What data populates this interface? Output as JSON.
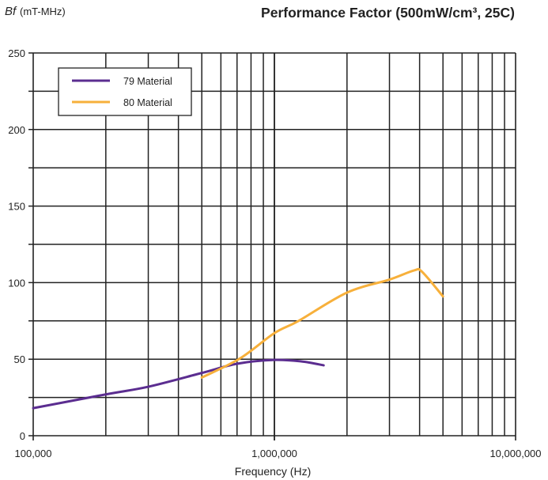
{
  "chart_data": {
    "type": "line",
    "title": "Performance Factor (500mW/cm³, 25C)",
    "ylabel_prefix": "Bf",
    "ylabel": "(mT-MHz)",
    "xlabel": "Frequency (Hz)",
    "x_scale": "log",
    "xlim": [
      100000,
      10000000
    ],
    "ylim": [
      0,
      250
    ],
    "x_ticks": [
      100000,
      1000000,
      10000000
    ],
    "x_tick_labels": [
      "100,000",
      "1,000,000",
      "10,000,000"
    ],
    "y_ticks": [
      0,
      50,
      100,
      150,
      200,
      250
    ],
    "y_tick_labels": [
      "0",
      "50",
      "100",
      "150",
      "200",
      "250"
    ],
    "grid": true,
    "legend_position": "top-left",
    "series": [
      {
        "name": "79 Material",
        "color": "#5b2d90",
        "x": [
          100000,
          200000,
          300000,
          500000,
          700000,
          1000000,
          1300000,
          1600000
        ],
        "y": [
          18,
          27,
          32,
          41,
          47,
          49.5,
          48.5,
          46
        ]
      },
      {
        "name": "80 Material",
        "color": "#f7b03b",
        "x": [
          500000,
          720000,
          1000000,
          1260000,
          2000000,
          3000000,
          3800000,
          4100000,
          5000000
        ],
        "y": [
          38,
          50.5,
          67,
          75,
          93.5,
          102,
          108,
          107,
          91
        ]
      }
    ]
  }
}
